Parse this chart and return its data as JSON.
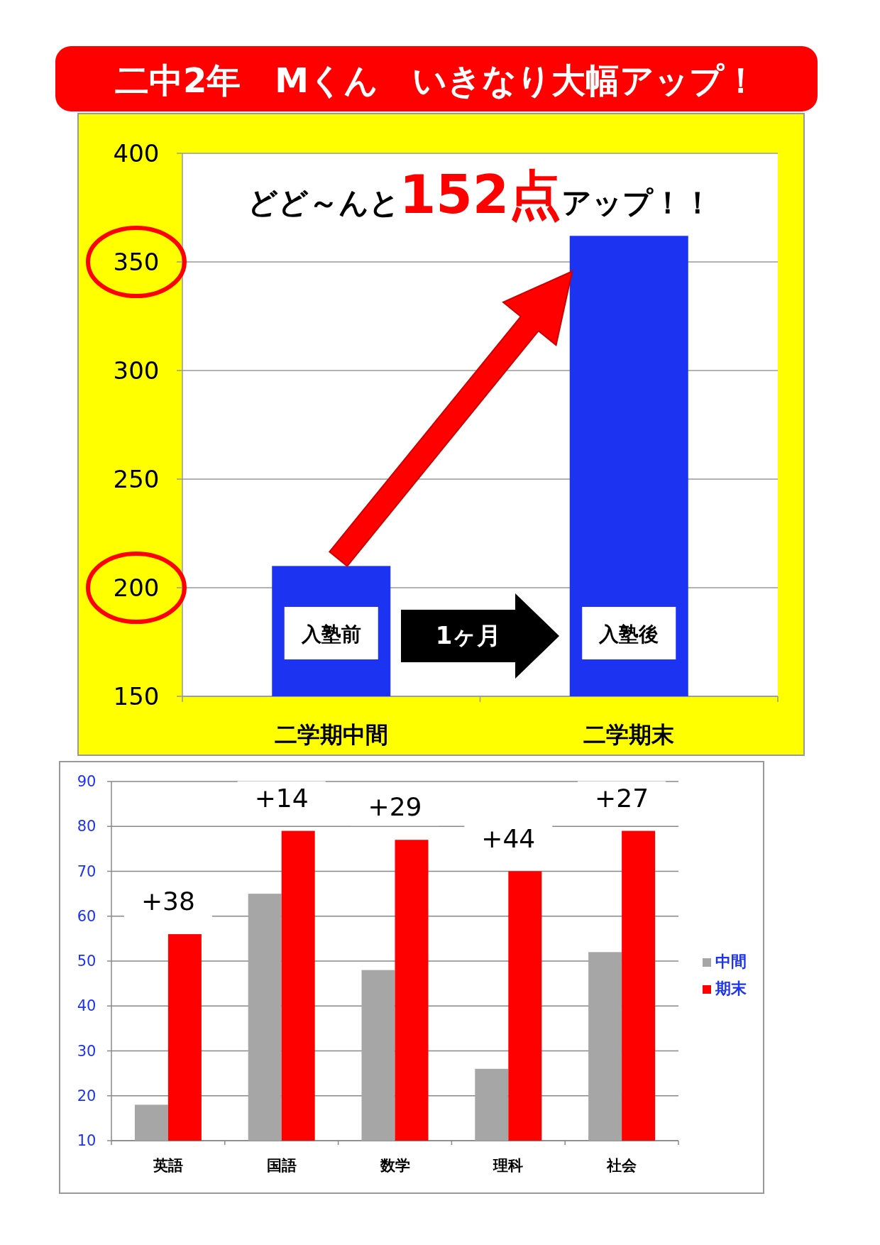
{
  "chart_data": [
    {
      "type": "bar",
      "title": "二中2年　Mくん　いきなり大幅アップ！",
      "categories": [
        "二学期中間",
        "二学期末"
      ],
      "values": [
        210,
        362
      ],
      "color": "#1c33f2",
      "ylim": [
        150,
        400
      ],
      "yticks": [
        150,
        200,
        250,
        300,
        350,
        400
      ],
      "grid": "y",
      "annotations": [
        "どど～んと**152点**アップ！！",
        "入塾前",
        "1ヶ月",
        "入塾後"
      ]
    },
    {
      "type": "bar",
      "categories": [
        "英語",
        "国語",
        "数学",
        "理科",
        "社会"
      ],
      "series": [
        {
          "name": "中間",
          "color": "#a6a6a6",
          "values": [
            18,
            65,
            48,
            26,
            52
          ]
        },
        {
          "name": "期末",
          "color": "#ff0000",
          "values": [
            56,
            79,
            77,
            70,
            79
          ]
        }
      ],
      "ylim": [
        10,
        90
      ],
      "yticks": [
        10,
        20,
        30,
        40,
        50,
        60,
        70,
        80,
        90
      ],
      "grid": "y",
      "legend": "right",
      "annotations": [
        {
          "text": "+38",
          "x": "英語",
          "y": 56
        },
        {
          "text": "+14",
          "x": "国語",
          "y": 79
        },
        {
          "text": "+29",
          "x": "数学",
          "y": 77
        },
        {
          "text": "+44",
          "x": "理科",
          "y": 70
        },
        {
          "text": "+27",
          "x": "社会",
          "y": 79
        }
      ]
    }
  ]
}
